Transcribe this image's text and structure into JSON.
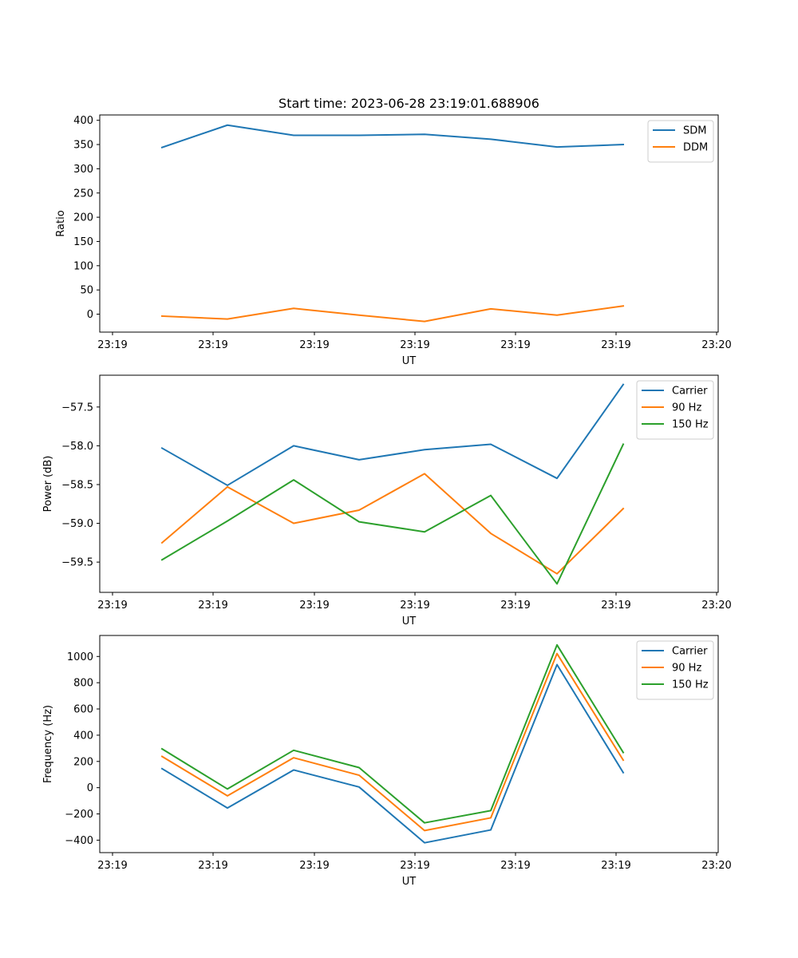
{
  "chart_data": [
    {
      "type": "line",
      "title": "Start time: 2023-06-28 23:19:01.688906",
      "xlabel": "UT",
      "ylabel": "Ratio",
      "x_tick_labels": [
        "23:19",
        "23:19",
        "23:19",
        "23:19",
        "23:19",
        "23:19",
        "23:20"
      ],
      "yticks": [
        0,
        50,
        100,
        150,
        200,
        250,
        300,
        350,
        400
      ],
      "ylim": [
        -37,
        411
      ],
      "legend_position": "upper right",
      "series": [
        {
          "name": "SDM",
          "color": "#1f77b4",
          "values": [
            344,
            390,
            369,
            369,
            371,
            361,
            345,
            350
          ]
        },
        {
          "name": "DDM",
          "color": "#ff7f0e",
          "values": [
            -4,
            -10,
            12,
            -2,
            -15,
            11,
            -2,
            17
          ]
        }
      ]
    },
    {
      "type": "line",
      "title": "",
      "xlabel": "UT",
      "ylabel": "Power (dB)",
      "x_tick_labels": [
        "23:19",
        "23:19",
        "23:19",
        "23:19",
        "23:19",
        "23:19",
        "23:20"
      ],
      "yticks": [
        -59.5,
        -59.0,
        -58.5,
        -58.0,
        -57.5
      ],
      "ytick_labels": [
        "−59.5",
        "−59.0",
        "−58.5",
        "−58.0",
        "−57.5"
      ],
      "ylim": [
        -59.89,
        -57.09
      ],
      "legend_position": "upper right",
      "series": [
        {
          "name": "Carrier",
          "color": "#1f77b4",
          "values": [
            -58.03,
            -58.51,
            -58.0,
            -58.18,
            -58.05,
            -57.98,
            -58.42,
            -57.21
          ]
        },
        {
          "name": "90 Hz",
          "color": "#ff7f0e",
          "values": [
            -59.25,
            -58.53,
            -59.0,
            -58.83,
            -58.36,
            -59.13,
            -59.65,
            -58.81
          ]
        },
        {
          "name": "150 Hz",
          "color": "#2ca02c",
          "values": [
            -59.47,
            -58.97,
            -58.44,
            -58.98,
            -59.11,
            -58.64,
            -59.78,
            -57.98
          ]
        }
      ]
    },
    {
      "type": "line",
      "title": "",
      "xlabel": "UT",
      "ylabel": "Frequency (Hz)",
      "x_tick_labels": [
        "23:19",
        "23:19",
        "23:19",
        "23:19",
        "23:19",
        "23:19",
        "23:20"
      ],
      "yticks": [
        -400,
        -200,
        0,
        200,
        400,
        600,
        800,
        1000
      ],
      "ytick_labels": [
        "−400",
        "−200",
        "0",
        "200",
        "400",
        "600",
        "800",
        "1000"
      ],
      "ylim": [
        -495,
        1160
      ],
      "legend_position": "upper right",
      "series": [
        {
          "name": "Carrier",
          "color": "#1f77b4",
          "values": [
            145,
            -155,
            135,
            5,
            -420,
            -322,
            938,
            115
          ]
        },
        {
          "name": "90 Hz",
          "color": "#ff7f0e",
          "values": [
            238,
            -62,
            228,
            95,
            -327,
            -230,
            1022,
            210
          ]
        },
        {
          "name": "150 Hz",
          "color": "#2ca02c",
          "values": [
            296,
            -10,
            285,
            153,
            -268,
            -175,
            1088,
            268
          ]
        }
      ]
    }
  ]
}
